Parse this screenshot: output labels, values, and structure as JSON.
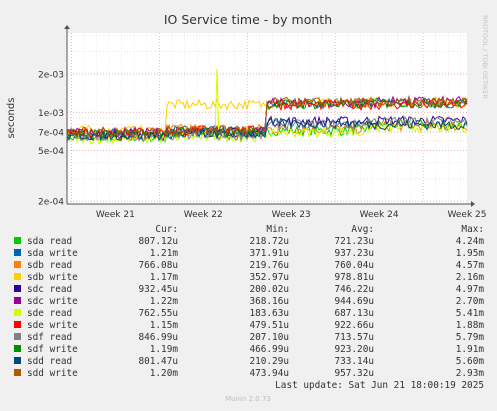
{
  "chart_data": {
    "type": "line",
    "title": "IO Service time - by month",
    "ylabel": "seconds",
    "watermark": "RRDTOOL / TOBI OETIKER",
    "y_scale": "log",
    "ylim": [
      0.00019,
      0.0042
    ],
    "y_ticks": [
      {
        "label": "2e-03",
        "value": 0.002
      },
      {
        "label": "1e-03",
        "value": 0.001
      },
      {
        "label": "7e-04",
        "value": 0.0007
      },
      {
        "label": "5e-04",
        "value": 0.0005
      },
      {
        "label": "2e-04",
        "value": 0.0002
      }
    ],
    "x_ticks": [
      "Week 21",
      "Week 22",
      "Week 23",
      "Week 24",
      "Week 25"
    ],
    "grid": true,
    "legend_header": {
      "cur": "Cur:",
      "min": "Min:",
      "avg": "Avg:",
      "max": "Max:"
    },
    "series": [
      {
        "name": "sda read",
        "color": "#00cc00",
        "cur": "807.12u",
        "min": "218.72u",
        "avg": "721.23u",
        "max": "4.24m",
        "levels": [
          0.00064,
          0.00068,
          0.00072,
          0.0008
        ]
      },
      {
        "name": "sda write",
        "color": "#0066b3",
        "cur": "1.21m",
        "min": "371.91u",
        "avg": "937.23u",
        "max": "1.95m",
        "levels": [
          0.00068,
          0.00072,
          0.00118,
          0.00118
        ]
      },
      {
        "name": "sdb read",
        "color": "#ff8000",
        "cur": "766.08u",
        "min": "219.76u",
        "avg": "760.04u",
        "max": "4.57m",
        "levels": [
          0.00066,
          0.00074,
          0.00074,
          0.00078
        ]
      },
      {
        "name": "sdb write",
        "color": "#ffcc00",
        "cur": "1.17m",
        "min": "352.97u",
        "avg": "978.81u",
        "max": "2.16m",
        "levels": [
          0.00072,
          0.00115,
          0.00118,
          0.0012
        ]
      },
      {
        "name": "sdc read",
        "color": "#330099",
        "cur": "932.45u",
        "min": "200.02u",
        "avg": "746.22u",
        "max": "4.97m",
        "levels": [
          0.00066,
          0.0007,
          0.00085,
          0.00086
        ]
      },
      {
        "name": "sdc write",
        "color": "#990099",
        "cur": "1.22m",
        "min": "368.16u",
        "avg": "944.69u",
        "max": "2.70m",
        "levels": [
          0.0007,
          0.0007,
          0.00118,
          0.00122
        ]
      },
      {
        "name": "sde read",
        "color": "#ccff00",
        "cur": "762.55u",
        "min": "183.63u",
        "avg": "687.13u",
        "max": "5.41m",
        "levels": [
          0.00062,
          0.00064,
          0.0007,
          0.00076
        ]
      },
      {
        "name": "sde write",
        "color": "#ff0000",
        "cur": "1.15m",
        "min": "479.51u",
        "avg": "922.66u",
        "max": "1.88m",
        "levels": [
          0.0007,
          0.00072,
          0.00115,
          0.00115
        ]
      },
      {
        "name": "sdf read",
        "color": "#808080",
        "cur": "846.99u",
        "min": "207.10u",
        "avg": "713.57u",
        "max": "5.79m",
        "levels": [
          0.00064,
          0.00066,
          0.0008,
          0.00085
        ]
      },
      {
        "name": "sdf write",
        "color": "#008f00",
        "cur": "1.19m",
        "min": "466.99u",
        "avg": "923.20u",
        "max": "1.91m",
        "levels": [
          0.00068,
          0.0007,
          0.00116,
          0.00119
        ]
      },
      {
        "name": "sdd read",
        "color": "#00487d",
        "cur": "801.47u",
        "min": "210.29u",
        "avg": "733.14u",
        "max": "5.60m",
        "levels": [
          0.00066,
          0.00068,
          0.00082,
          0.0008
        ]
      },
      {
        "name": "sdd write",
        "color": "#b35a00",
        "cur": "1.20m",
        "min": "473.94u",
        "avg": "957.32u",
        "max": "2.93m",
        "levels": [
          0.0007,
          0.00072,
          0.0012,
          0.0012
        ]
      }
    ]
  },
  "footer": {
    "last_update": "Last update: Sat Jun 21 18:00:19 2025",
    "munin": "Munin 2.0.73"
  }
}
